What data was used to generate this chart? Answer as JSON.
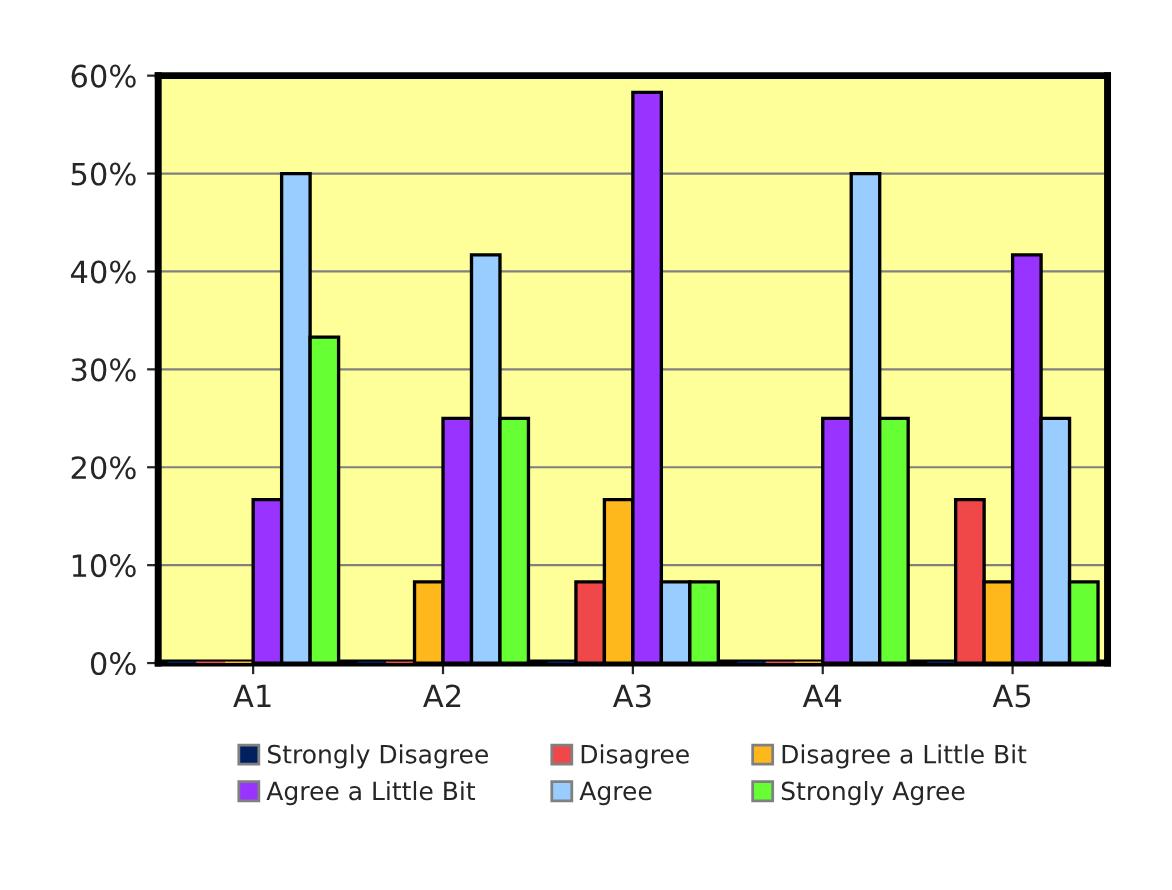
{
  "chart_data": {
    "type": "bar",
    "categories": [
      "A1",
      "A2",
      "A3",
      "A4",
      "A5"
    ],
    "series": [
      {
        "name": "Strongly Disagree",
        "color": "#002060",
        "values": [
          0,
          0,
          0,
          0,
          0
        ]
      },
      {
        "name": "Disagree",
        "color": "#f04848",
        "values": [
          0,
          0,
          8.3,
          0,
          16.7
        ]
      },
      {
        "name": "Disagree a Little Bit",
        "color": "#ffb81c",
        "values": [
          0,
          8.3,
          16.7,
          0,
          8.3
        ]
      },
      {
        "name": "Agree a Little Bit",
        "color": "#9933ff",
        "values": [
          16.7,
          25,
          58.3,
          25,
          41.7
        ]
      },
      {
        "name": "Agree",
        "color": "#99ccff",
        "values": [
          50,
          41.7,
          8.3,
          50,
          25
        ]
      },
      {
        "name": "Strongly Agree",
        "color": "#66ff33",
        "values": [
          33.3,
          25,
          8.3,
          25,
          8.3
        ]
      }
    ],
    "ylim": [
      0,
      60
    ],
    "yticks": [
      {
        "value": 0,
        "label": "0%"
      },
      {
        "value": 10,
        "label": "10%"
      },
      {
        "value": 20,
        "label": "20%"
      },
      {
        "value": 30,
        "label": "30%"
      },
      {
        "value": 40,
        "label": "40%"
      },
      {
        "value": 50,
        "label": "50%"
      },
      {
        "value": 60,
        "label": "60%"
      }
    ],
    "grid": "y",
    "legend": "bottom"
  }
}
